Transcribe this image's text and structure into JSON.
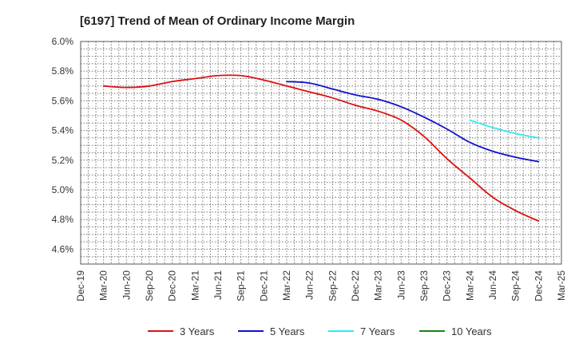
{
  "chart_data": {
    "type": "line",
    "title": "[6197]  Trend of Mean of Ordinary Income Margin",
    "xlabel": "",
    "ylabel": "",
    "x_ticks": [
      "Dec-19",
      "Mar-20",
      "Jun-20",
      "Sep-20",
      "Dec-20",
      "Mar-21",
      "Jun-21",
      "Sep-21",
      "Dec-21",
      "Mar-22",
      "Jun-22",
      "Sep-22",
      "Dec-22",
      "Mar-23",
      "Jun-23",
      "Sep-23",
      "Dec-23",
      "Mar-24",
      "Jun-24",
      "Sep-24",
      "Dec-24",
      "Mar-25"
    ],
    "y_ticks": [
      "4.6%",
      "4.8%",
      "5.0%",
      "5.2%",
      "5.4%",
      "5.6%",
      "5.8%",
      "6.0%"
    ],
    "ylim": [
      4.5,
      6.0
    ],
    "grid": true,
    "legend_position": "bottom",
    "series": [
      {
        "name": "3 Years",
        "color": "#dd1111",
        "points": [
          [
            "Mar-20",
            5.7
          ],
          [
            "Jun-20",
            5.69
          ],
          [
            "Sep-20",
            5.7
          ],
          [
            "Dec-20",
            5.73
          ],
          [
            "Mar-21",
            5.75
          ],
          [
            "Jun-21",
            5.77
          ],
          [
            "Sep-21",
            5.77
          ],
          [
            "Dec-21",
            5.74
          ],
          [
            "Mar-22",
            5.7
          ],
          [
            "Jun-22",
            5.66
          ],
          [
            "Sep-22",
            5.62
          ],
          [
            "Dec-22",
            5.57
          ],
          [
            "Mar-23",
            5.53
          ],
          [
            "Jun-23",
            5.47
          ],
          [
            "Sep-23",
            5.36
          ],
          [
            "Dec-23",
            5.21
          ],
          [
            "Mar-24",
            5.08
          ],
          [
            "Jun-24",
            4.95
          ],
          [
            "Sep-24",
            4.86
          ],
          [
            "Dec-24",
            4.79
          ]
        ]
      },
      {
        "name": "5 Years",
        "color": "#1111cc",
        "points": [
          [
            "Mar-22",
            5.73
          ],
          [
            "Jun-22",
            5.72
          ],
          [
            "Sep-22",
            5.68
          ],
          [
            "Dec-22",
            5.64
          ],
          [
            "Mar-23",
            5.61
          ],
          [
            "Jun-23",
            5.56
          ],
          [
            "Sep-23",
            5.49
          ],
          [
            "Dec-23",
            5.41
          ],
          [
            "Mar-24",
            5.32
          ],
          [
            "Jun-24",
            5.26
          ],
          [
            "Sep-24",
            5.22
          ],
          [
            "Dec-24",
            5.19
          ]
        ]
      },
      {
        "name": "7 Years",
        "color": "#33e8ee",
        "points": [
          [
            "Mar-24",
            5.47
          ],
          [
            "Jun-24",
            5.42
          ],
          [
            "Sep-24",
            5.38
          ],
          [
            "Dec-24",
            5.35
          ]
        ]
      },
      {
        "name": "10 Years",
        "color": "#118811",
        "points": []
      }
    ]
  }
}
